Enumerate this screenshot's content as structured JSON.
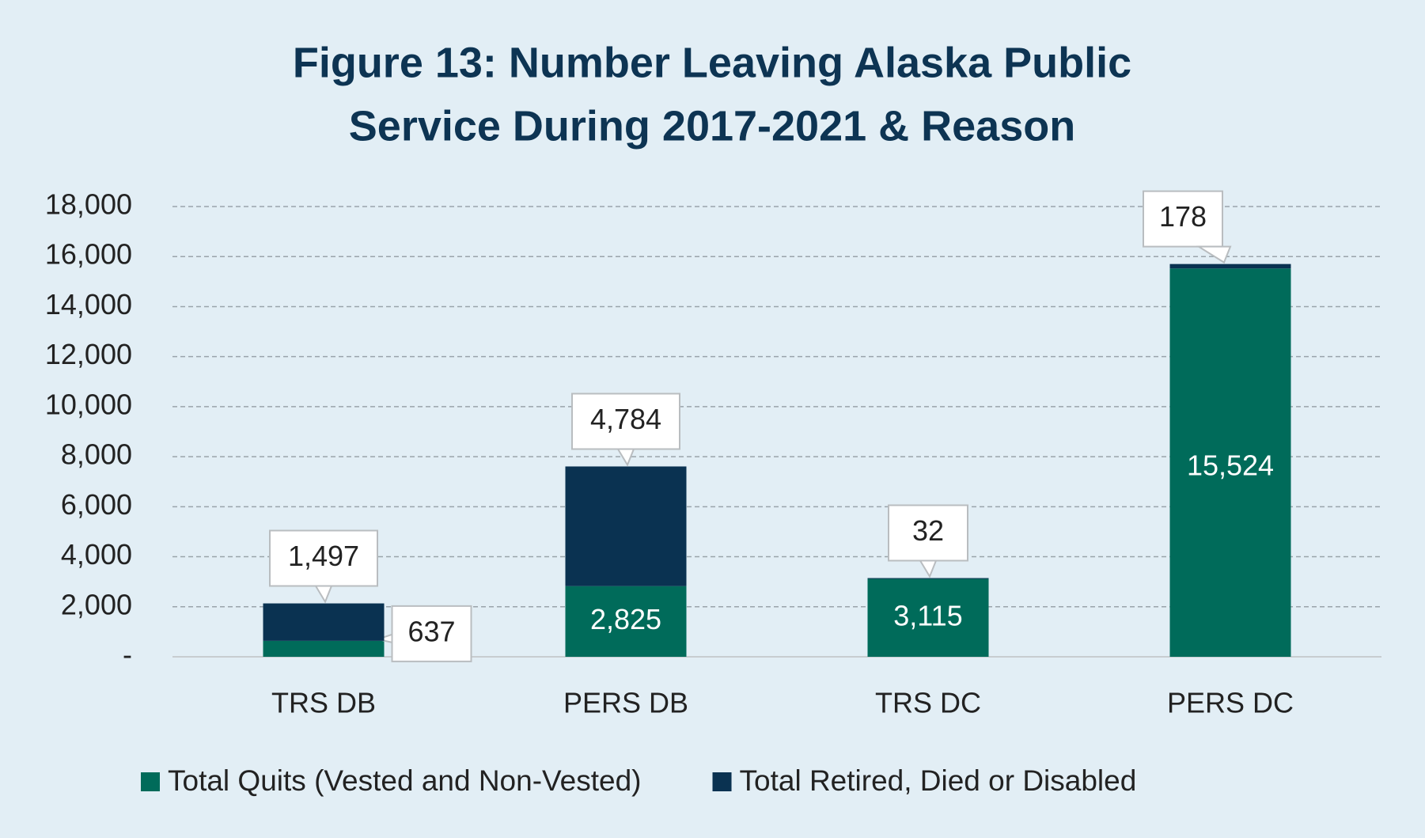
{
  "chart_data": {
    "type": "bar",
    "stacked": true,
    "title_lines": [
      "Figure 13: Number Leaving Alaska Public",
      "Service During 2017-2021 & Reason"
    ],
    "categories": [
      "TRS DB",
      "PERS DB",
      "TRS DC",
      "PERS DC"
    ],
    "series": [
      {
        "name": "Total Quits (Vested and Non-Vested)",
        "color": "#006b5a",
        "values": [
          637,
          2825,
          3115,
          15524
        ],
        "value_labels": [
          "637",
          "2,825",
          "3,115",
          "15,524"
        ]
      },
      {
        "name": "Total Retired, Died or Disabled",
        "color": "#0a3251",
        "values": [
          1497,
          4784,
          32,
          178
        ],
        "value_labels": [
          "1,497",
          "4,784",
          "32",
          "178"
        ]
      }
    ],
    "ylim": [
      0,
      18000
    ],
    "yticks": [
      {
        "value": 0,
        "label": "-"
      },
      {
        "value": 2000,
        "label": "2,000"
      },
      {
        "value": 4000,
        "label": "4,000"
      },
      {
        "value": 6000,
        "label": "6,000"
      },
      {
        "value": 8000,
        "label": "8,000"
      },
      {
        "value": 10000,
        "label": "10,000"
      },
      {
        "value": 12000,
        "label": "12,000"
      },
      {
        "value": 14000,
        "label": "14,000"
      },
      {
        "value": 16000,
        "label": "16,000"
      },
      {
        "value": 18000,
        "label": "18,000"
      }
    ],
    "grid": true,
    "legend": "bottom"
  }
}
